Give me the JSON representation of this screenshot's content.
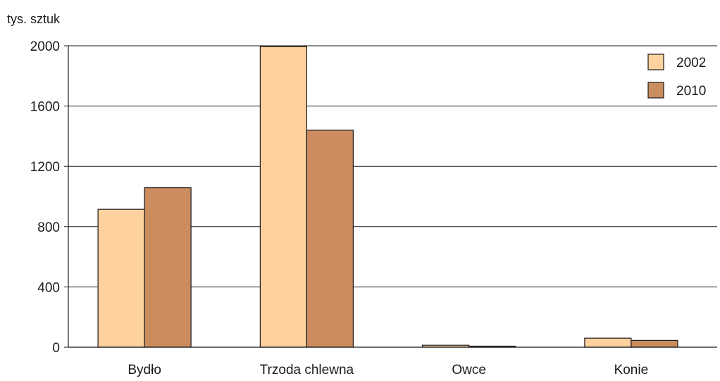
{
  "chart_data": {
    "type": "bar",
    "ylabel": "tys. sztuk",
    "xlabel": "",
    "categories": [
      "Bydło",
      "Trzoda chlewna",
      "Owce",
      "Konie"
    ],
    "series": [
      {
        "name": "2002",
        "values": [
          915,
          1995,
          13,
          60
        ],
        "color": "#FDD29E"
      },
      {
        "name": "2010",
        "values": [
          1058,
          1440,
          7,
          45
        ],
        "color": "#CB8C5E"
      }
    ],
    "ylim": [
      0,
      2000
    ],
    "yticks": [
      0,
      400,
      800,
      1200,
      1600,
      2000
    ],
    "grid": true,
    "legend": "top-right",
    "colors": {
      "axis": "#1a1a1a",
      "grid": "#1a1a1a",
      "bar_stroke": "#1a1a1a"
    }
  }
}
